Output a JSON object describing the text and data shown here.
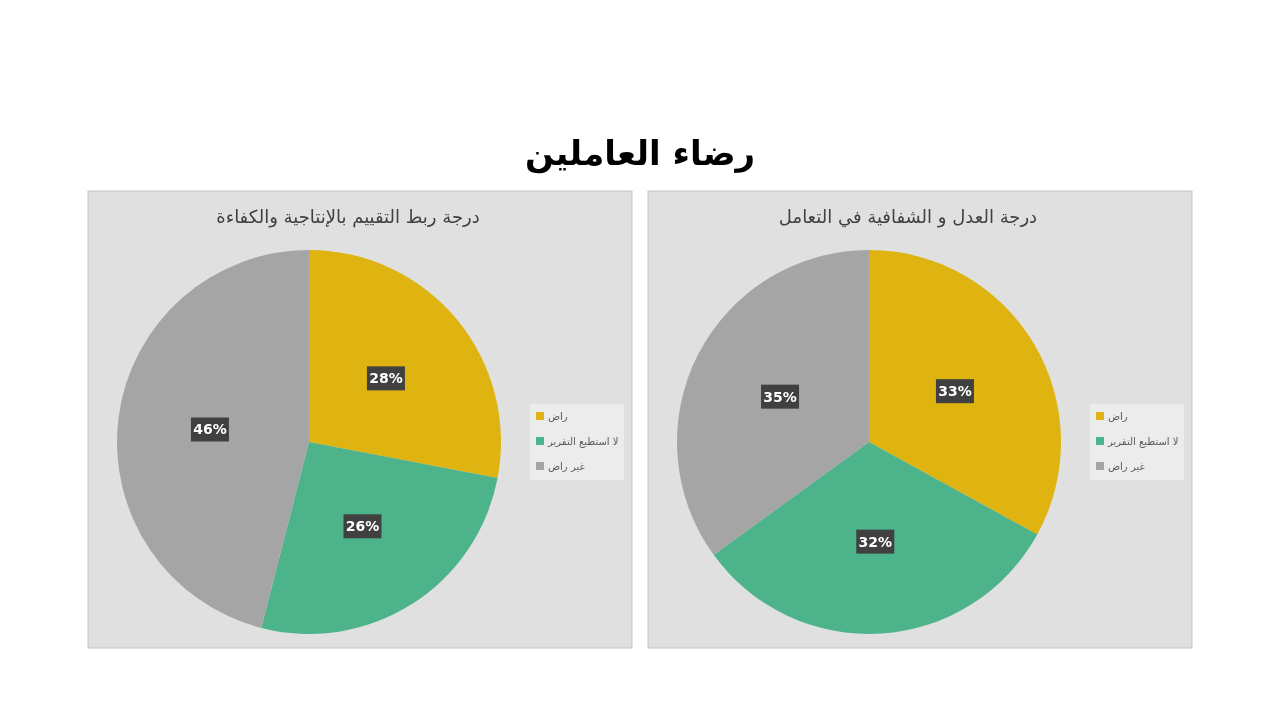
{
  "chart_data": [
    {
      "type": "pie",
      "title": "درجة ربط التقييم بالإنتاجية والكفاءة",
      "annotations": [
        "رضاء العاملين"
      ],
      "categories": [
        "راض",
        "لا استطيع التقرير",
        "غير راض"
      ],
      "values": [
        28,
        26,
        46
      ],
      "colors": [
        "#dfb310",
        "#4db38b",
        "#a5a5a5"
      ],
      "value_labels": [
        "28%",
        "26%",
        "46%"
      ],
      "legend": "right"
    },
    {
      "type": "pie",
      "title": "درجة العدل و الشفافية في التعامل",
      "categories": [
        "راض",
        "لا استطيع التقرير",
        "غير راض"
      ],
      "values": [
        33,
        32,
        35
      ],
      "colors": [
        "#dfb310",
        "#4db38b",
        "#a5a5a5"
      ],
      "value_labels": [
        "33%",
        "32%",
        "35%"
      ],
      "legend": "right"
    }
  ]
}
